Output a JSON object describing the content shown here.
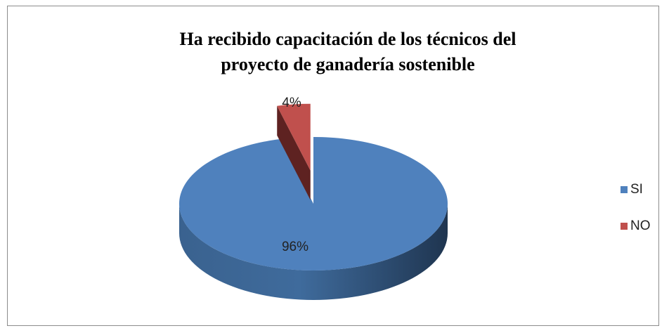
{
  "chart_data": {
    "type": "pie3d",
    "title": "Ha recibido capacitación de los técnicos del proyecto de ganadería sostenible",
    "categories": [
      "SI",
      "NO"
    ],
    "values": [
      96,
      4
    ],
    "value_labels": [
      "96%",
      "4%"
    ],
    "colors": [
      "#4f81bd",
      "#c0504d"
    ],
    "legend": "right"
  }
}
